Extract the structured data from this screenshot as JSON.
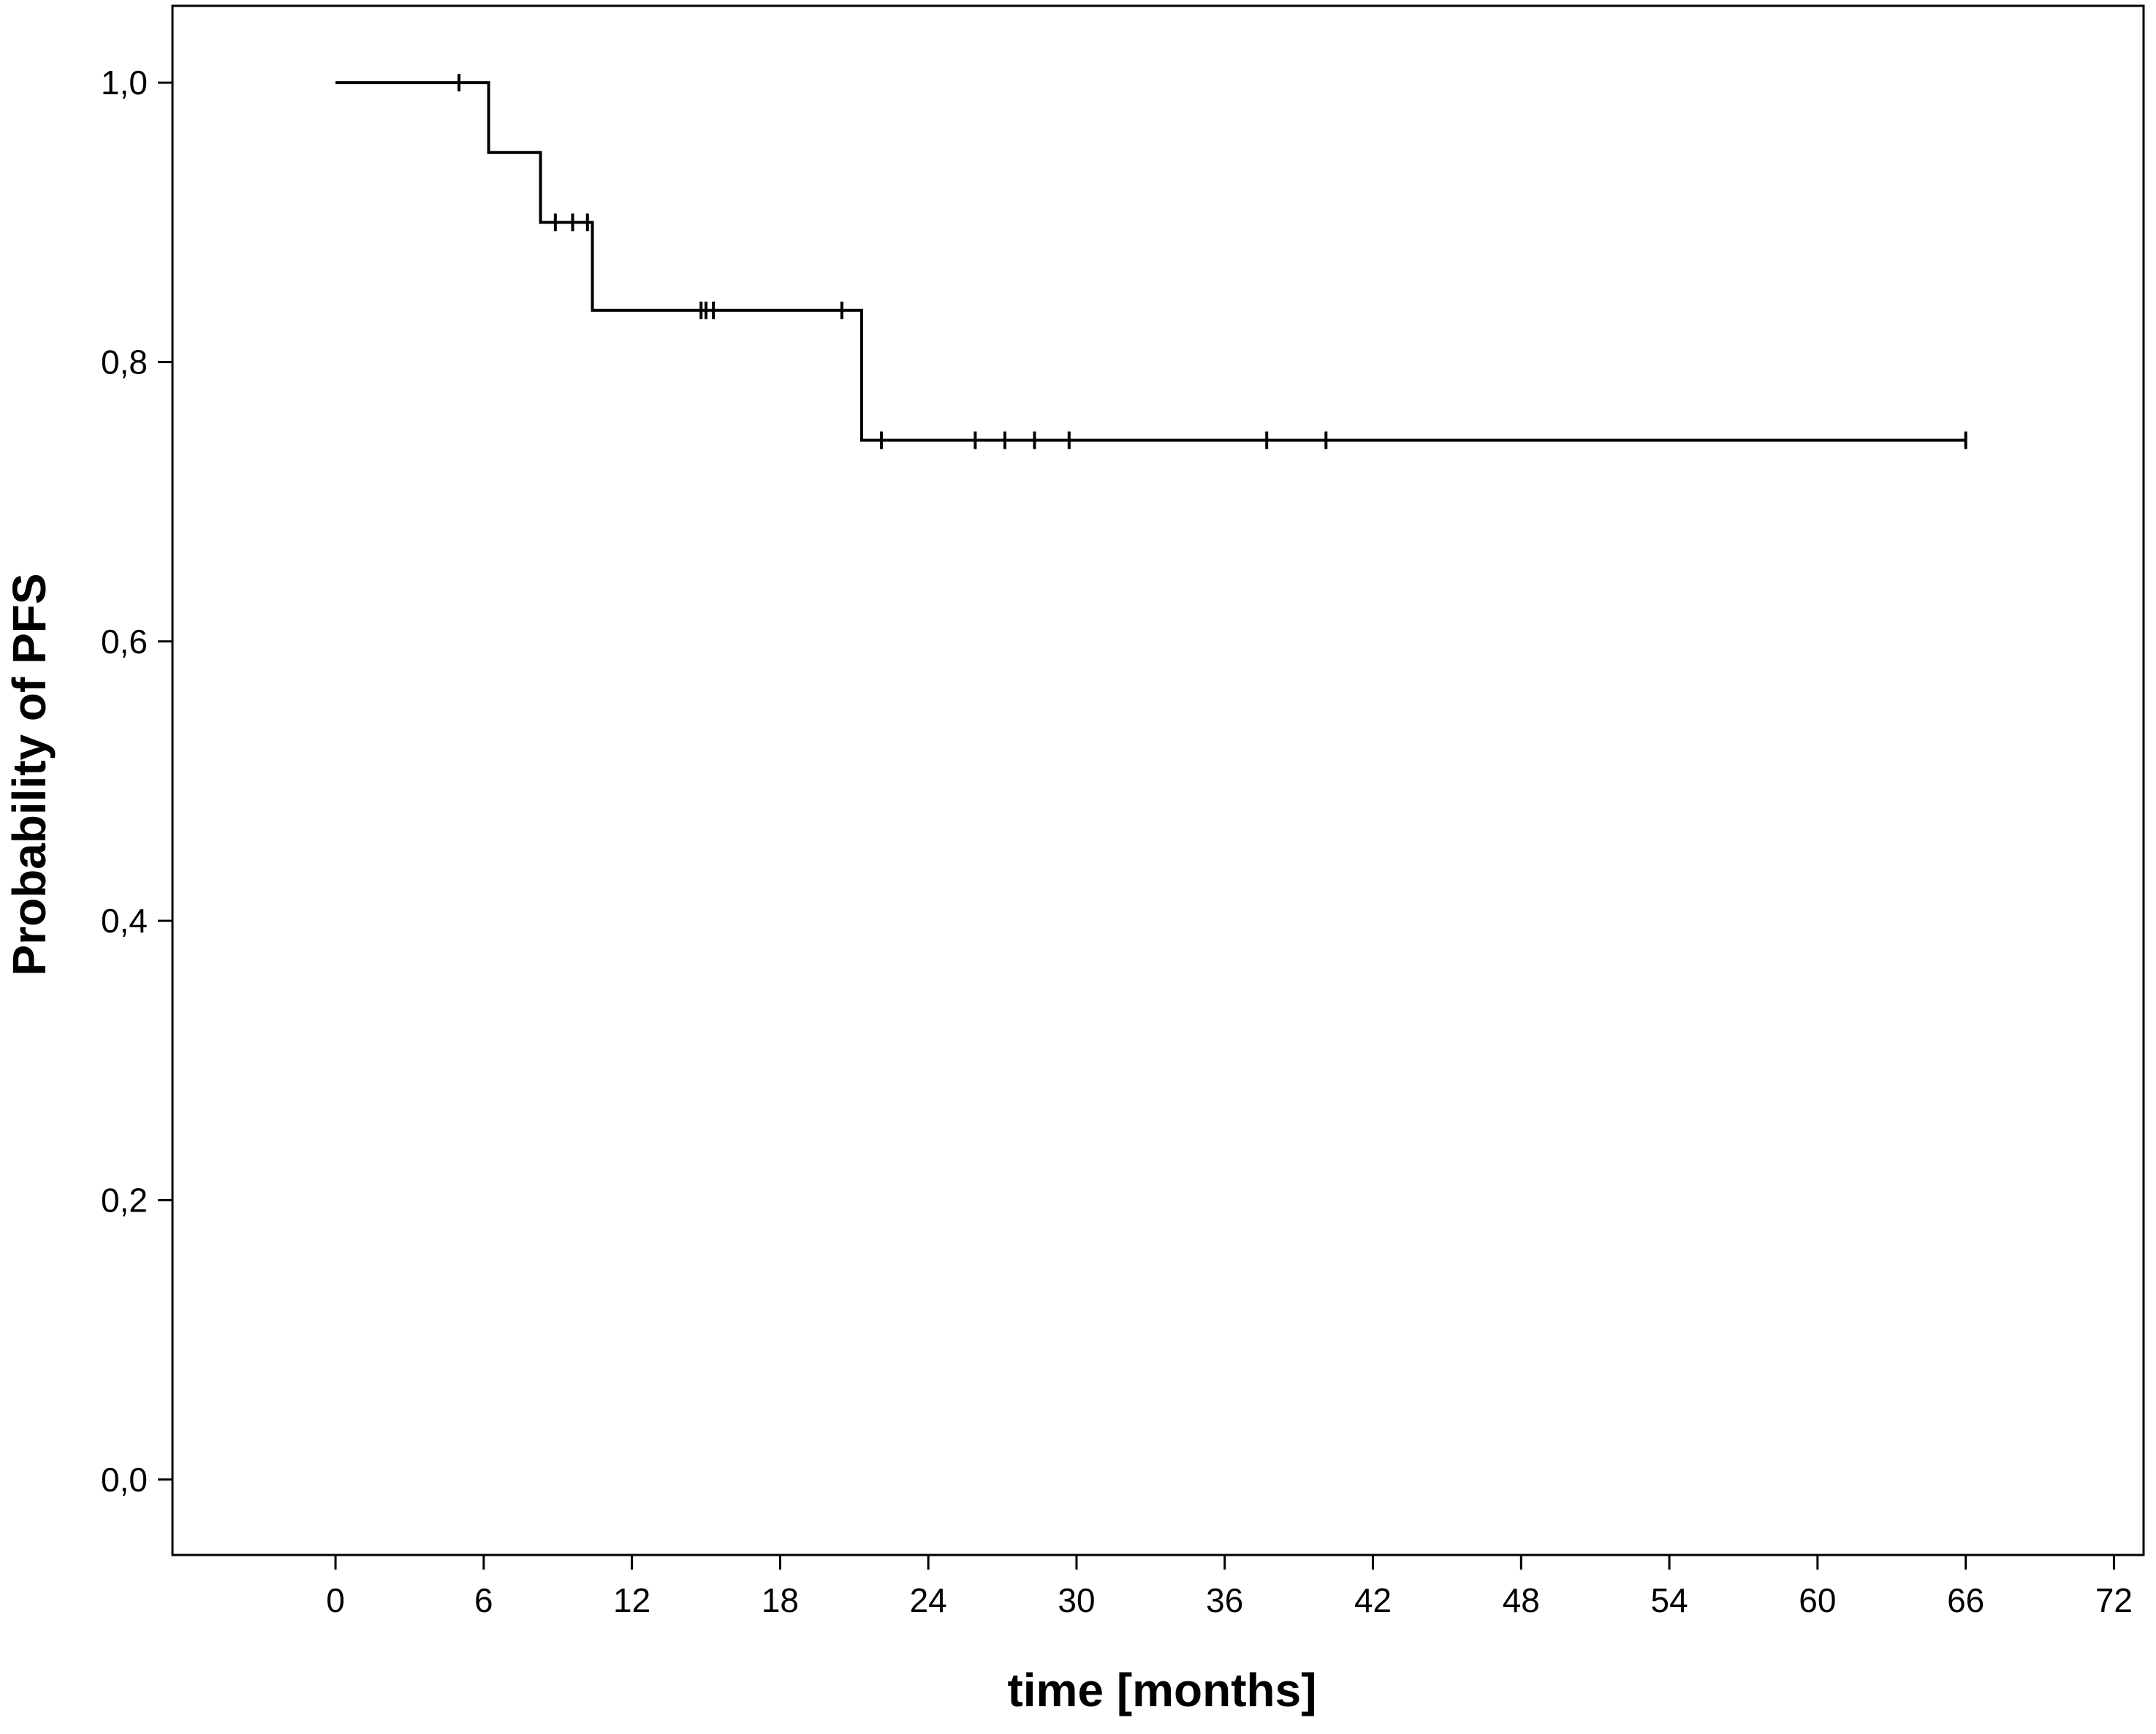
{
  "chart_data": {
    "type": "line",
    "title": "",
    "xlabel": "time [months]",
    "ylabel": "Probability of PFS",
    "xlim": [
      -6.6,
      73.2
    ],
    "ylim": [
      -0.054,
      1.055
    ],
    "x_ticks": [
      0,
      6,
      12,
      18,
      24,
      30,
      36,
      42,
      48,
      54,
      60,
      66,
      72
    ],
    "x_tick_labels": [
      "0",
      "6",
      "12",
      "18",
      "24",
      "30",
      "36",
      "42",
      "48",
      "54",
      "60",
      "66",
      "72"
    ],
    "y_ticks": [
      0,
      0.2,
      0.4,
      0.6,
      0.8,
      1.0
    ],
    "y_tick_labels": [
      "0,0",
      "0,2",
      "0,4",
      "0,6",
      "0,8",
      "1,0"
    ],
    "grid": false,
    "legend": "none",
    "line_color": "#000000",
    "series": [
      {
        "style": "kaplan-meier-step",
        "x": [
          0,
          6.2,
          8.3,
          10.4,
          21.3,
          66.0
        ],
        "y": [
          1.0,
          0.95,
          0.9,
          0.837,
          0.744,
          0.744
        ],
        "censored": [
          {
            "x": 5.0,
            "y": 1.0
          },
          {
            "x": 8.9,
            "y": 0.9
          },
          {
            "x": 9.6,
            "y": 0.9
          },
          {
            "x": 10.2,
            "y": 0.9
          },
          {
            "x": 14.8,
            "y": 0.837
          },
          {
            "x": 15.0,
            "y": 0.837
          },
          {
            "x": 15.3,
            "y": 0.837
          },
          {
            "x": 20.5,
            "y": 0.837
          },
          {
            "x": 22.1,
            "y": 0.744
          },
          {
            "x": 25.9,
            "y": 0.744
          },
          {
            "x": 27.1,
            "y": 0.744
          },
          {
            "x": 28.3,
            "y": 0.744
          },
          {
            "x": 29.7,
            "y": 0.744
          },
          {
            "x": 37.7,
            "y": 0.744
          },
          {
            "x": 40.1,
            "y": 0.744
          },
          {
            "x": 66.0,
            "y": 0.744
          }
        ]
      }
    ]
  }
}
